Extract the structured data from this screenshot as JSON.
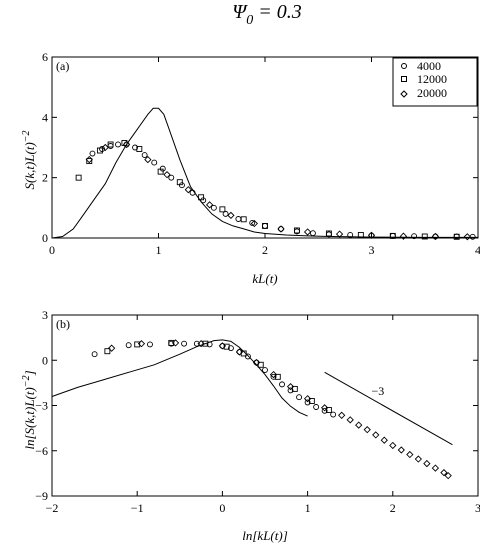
{
  "figure": {
    "title_symbol": "Ψ",
    "title_subscript": "0",
    "title_rest": " = 0.3"
  },
  "chart_data": [
    {
      "type": "scatter",
      "panel_tag": "(a)",
      "xlabel": "kL(t)",
      "ylabel": "S(k,t)L(t)",
      "ylabel_superscript": "−2",
      "xlim": [
        0,
        4
      ],
      "ylim": [
        0,
        6
      ],
      "xticks": [
        "0",
        "1",
        "2",
        "3",
        "4"
      ],
      "yticks": [
        "0",
        "2",
        "4",
        "6"
      ],
      "legend_position": "top-right",
      "series": [
        {
          "name": "4000",
          "marker": "circle",
          "x": [
            0.38,
            0.47,
            0.55,
            0.62,
            0.7,
            0.78,
            0.87,
            0.96,
            1.04,
            1.12,
            1.22,
            1.32,
            1.42,
            1.52,
            1.63,
            1.75,
            1.88,
            2.0,
            2.15,
            2.3,
            2.45,
            2.6,
            2.8,
            3.0,
            3.2,
            3.4,
            3.6,
            3.8,
            3.95
          ],
          "y": [
            2.8,
            2.95,
            3.05,
            3.1,
            3.1,
            3.0,
            2.75,
            2.5,
            2.3,
            2.0,
            1.75,
            1.5,
            1.25,
            1.0,
            0.8,
            0.63,
            0.5,
            0.4,
            0.3,
            0.22,
            0.16,
            0.12,
            0.1,
            0.08,
            0.07,
            0.06,
            0.05,
            0.05,
            0.04
          ]
        },
        {
          "name": "12000",
          "marker": "square",
          "x": [
            0.25,
            0.35,
            0.45,
            0.55,
            0.68,
            0.82,
            1.02,
            1.2,
            1.4,
            1.6,
            1.8,
            2.0,
            2.3,
            2.6,
            2.9,
            3.2,
            3.5,
            3.8
          ],
          "y": [
            2.0,
            2.55,
            2.9,
            3.1,
            3.15,
            2.95,
            2.2,
            1.85,
            1.35,
            0.95,
            0.62,
            0.4,
            0.25,
            0.15,
            0.1,
            0.07,
            0.05,
            0.04
          ]
        },
        {
          "name": "20000",
          "marker": "diamond",
          "x": [
            0.35,
            0.5,
            0.7,
            0.9,
            1.08,
            1.28,
            1.48,
            1.68,
            1.9,
            2.15,
            2.4,
            2.7,
            3.0,
            3.3,
            3.6,
            3.9
          ],
          "y": [
            2.6,
            3.0,
            3.1,
            2.6,
            2.1,
            1.6,
            1.1,
            0.75,
            0.48,
            0.3,
            0.2,
            0.13,
            0.09,
            0.06,
            0.05,
            0.04
          ]
        },
        {
          "name": "",
          "marker": "line",
          "x": [
            0,
            0.1,
            0.2,
            0.3,
            0.4,
            0.5,
            0.6,
            0.7,
            0.8,
            0.9,
            0.95,
            1.0,
            1.05,
            1.1,
            1.2,
            1.3,
            1.4,
            1.5,
            1.6,
            1.7,
            1.8,
            1.9,
            2.0,
            2.2,
            2.4,
            2.6,
            2.8,
            3.0,
            3.5,
            4.0
          ],
          "y": [
            0,
            0.05,
            0.3,
            0.8,
            1.3,
            1.8,
            2.5,
            3.1,
            3.6,
            4.1,
            4.3,
            4.3,
            4.1,
            3.6,
            2.6,
            1.7,
            1.2,
            0.8,
            0.55,
            0.4,
            0.3,
            0.2,
            0.15,
            0.1,
            0.07,
            0.05,
            0.04,
            0.03,
            0.02,
            0.02
          ]
        }
      ]
    },
    {
      "type": "scatter",
      "panel_tag": "(b)",
      "xlabel": "ln[kL(t)]",
      "ylabel": "ln[S(k,t)L(t)",
      "ylabel_superscript": "−2",
      "ylabel_suffix": "]",
      "xlim": [
        -2,
        3
      ],
      "ylim": [
        -9,
        3
      ],
      "xticks": [
        "−2",
        "−1",
        "0",
        "1",
        "2",
        "3"
      ],
      "yticks": [
        "−9",
        "−6",
        "−3",
        "0",
        "3"
      ],
      "annotations": [
        {
          "text": "−3",
          "x": 1.75,
          "y": -2.3
        }
      ],
      "slope_line": {
        "x": [
          1.2,
          2.7
        ],
        "y": [
          -0.8,
          -5.6
        ]
      },
      "series": [
        {
          "name": "4000",
          "marker": "circle",
          "x": [
            -1.5,
            -1.1,
            -0.85,
            -0.6,
            -0.45,
            -0.3,
            -0.15,
            0.0,
            0.1,
            0.2,
            0.3,
            0.4,
            0.5,
            0.6,
            0.7,
            0.8,
            0.9,
            1.0,
            1.1,
            1.2,
            1.3
          ],
          "y": [
            0.4,
            1.0,
            1.05,
            1.1,
            1.1,
            1.1,
            1.05,
            0.95,
            0.8,
            0.55,
            0.25,
            -0.15,
            -0.65,
            -1.1,
            -1.6,
            -2.0,
            -2.45,
            -2.8,
            -3.1,
            -3.35,
            -3.6
          ]
        },
        {
          "name": "12000",
          "marker": "square",
          "x": [
            -1.35,
            -1.0,
            -0.6,
            -0.2,
            0.05,
            0.25,
            0.45,
            0.65,
            0.85,
            1.05,
            1.25
          ],
          "y": [
            0.6,
            1.05,
            1.15,
            1.1,
            0.9,
            0.45,
            -0.3,
            -1.1,
            -1.9,
            -2.7,
            -3.3
          ]
        },
        {
          "name": "20000",
          "marker": "diamond",
          "x": [
            -1.3,
            -0.95,
            -0.55,
            -0.25,
            0.0,
            0.2,
            0.4,
            0.6,
            0.8,
            1.0,
            1.2,
            1.4,
            1.5,
            1.6,
            1.7,
            1.8,
            1.9,
            2.0,
            2.1,
            2.2,
            2.3,
            2.4,
            2.5,
            2.6,
            2.65
          ],
          "y": [
            0.8,
            1.1,
            1.15,
            1.1,
            0.95,
            0.55,
            -0.15,
            -0.95,
            -1.75,
            -2.55,
            -3.15,
            -3.65,
            -3.95,
            -4.3,
            -4.6,
            -4.95,
            -5.3,
            -5.65,
            -5.95,
            -6.25,
            -6.55,
            -6.85,
            -7.15,
            -7.45,
            -7.65
          ]
        },
        {
          "name": "",
          "marker": "line",
          "x": [
            -2.0,
            -1.7,
            -1.4,
            -1.1,
            -0.8,
            -0.5,
            -0.3,
            -0.1,
            0.0,
            0.1,
            0.2,
            0.3,
            0.4,
            0.5,
            0.6,
            0.7,
            0.8,
            0.9,
            1.0
          ],
          "y": [
            -2.4,
            -1.8,
            -1.3,
            -0.8,
            -0.3,
            0.4,
            0.9,
            1.3,
            1.35,
            1.25,
            0.85,
            0.3,
            -0.3,
            -0.95,
            -1.7,
            -2.5,
            -3.05,
            -3.45,
            -3.7
          ]
        }
      ]
    }
  ]
}
